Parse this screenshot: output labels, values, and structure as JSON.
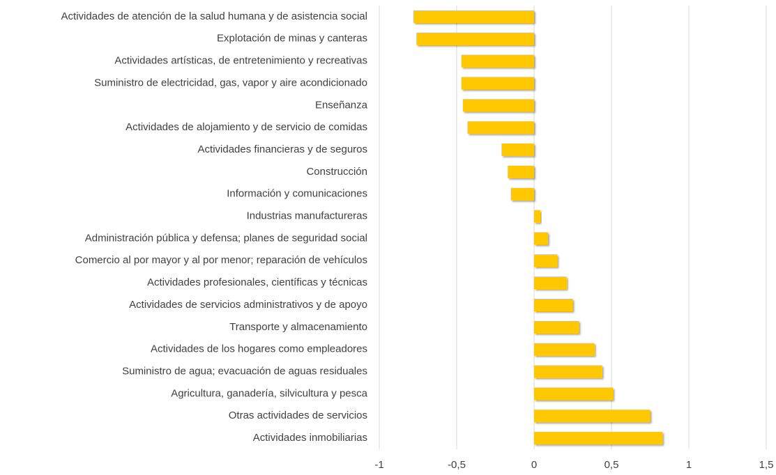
{
  "chart_data": {
    "type": "barh",
    "categories": [
      "Actividades de atención de la salud humana y de asistencia social",
      "Explotación de minas y canteras",
      "Actividades artísticas, de entretenimiento y recreativas",
      "Suministro de electricidad, gas, vapor y aire acondicionado",
      "Enseñanza",
      "Actividades de alojamiento y de servicio de comidas",
      "Actividades financieras y de seguros",
      "Construcción",
      "Información y comunicaciones",
      "Industrias manufactureras",
      "Administración pública y defensa; planes de seguridad social",
      "Comercio al por mayor y al por menor; reparación de vehículos",
      "Actividades profesionales, científicas y técnicas",
      "Actividades de servicios administrativos y de apoyo",
      "Transporte y almacenamiento",
      "Actividades de los hogares como empleadores",
      "Suministro de agua; evacuación de aguas residuales",
      "Agricultura, ganadería, silvicultura y pesca",
      "Otras actividades de servicios",
      "Actividades inmobiliarias"
    ],
    "values": [
      -0.78,
      -0.76,
      -0.47,
      -0.47,
      -0.46,
      -0.43,
      -0.21,
      -0.17,
      -0.15,
      0.04,
      0.09,
      0.15,
      0.21,
      0.25,
      0.29,
      0.39,
      0.44,
      0.51,
      0.75,
      0.83
    ],
    "color": "#ffc800",
    "xlim": [
      -1,
      1.5
    ],
    "xticks": [
      -1,
      {
        "value": -0.5,
        "label": "-0,5"
      },
      0,
      {
        "value": 0.5,
        "label": "0,5"
      },
      1,
      {
        "value": 1.5,
        "label": "1,5"
      }
    ],
    "grid": true
  }
}
